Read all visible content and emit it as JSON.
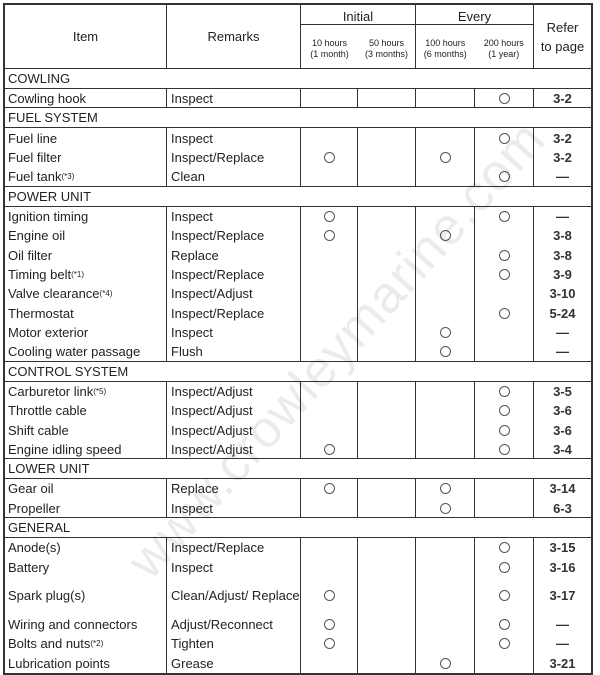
{
  "header": {
    "item": "Item",
    "remarks": "Remarks",
    "initial": "Initial",
    "every": "Every",
    "h10": "10 hours",
    "h10_sub": "(1 month)",
    "h50": "50 hours",
    "h50_sub": "(3 months)",
    "h100": "100 hours",
    "h100_sub": "(6 months)",
    "h200": "200 hours",
    "h200_sub": "(1 year)",
    "refer": "Refer to page"
  },
  "check_columns": [
    "10h",
    "50h",
    "100h",
    "200h"
  ],
  "sections": [
    {
      "title": "COWLING",
      "rows": [
        {
          "item": "Cowling hook",
          "note": "",
          "remarks": "Inspect",
          "checks": [
            "200h"
          ],
          "page": "3-2"
        }
      ]
    },
    {
      "title": "FUEL SYSTEM",
      "rows": [
        {
          "item": "Fuel line",
          "note": "",
          "remarks": "Inspect",
          "checks": [
            "200h"
          ],
          "page": "3-2"
        },
        {
          "item": "Fuel filter",
          "note": "",
          "remarks": "Inspect/Replace",
          "checks": [
            "10h",
            "100h"
          ],
          "page": "3-2"
        },
        {
          "item": "Fuel tank",
          "note": "(*3)",
          "remarks": "Clean",
          "checks": [
            "200h"
          ],
          "page": "—"
        }
      ]
    },
    {
      "title": "POWER UNIT",
      "rows": [
        {
          "item": "Ignition timing",
          "note": "",
          "remarks": "Inspect",
          "checks": [
            "10h",
            "200h"
          ],
          "page": "—"
        },
        {
          "item": "Engine oil",
          "note": "",
          "remarks": "Inspect/Replace",
          "checks": [
            "10h",
            "100h"
          ],
          "page": "3-8"
        },
        {
          "item": "Oil filter",
          "note": "",
          "remarks": "Replace",
          "checks": [
            "200h"
          ],
          "page": "3-8"
        },
        {
          "item": "Timing belt",
          "note": "(*1)",
          "remarks": "Inspect/Replace",
          "checks": [
            "200h"
          ],
          "page": "3-9"
        },
        {
          "item": "Valve clearance",
          "note": "(*4)",
          "remarks": "Inspect/Adjust",
          "checks": [],
          "page": "3-10"
        },
        {
          "item": "Thermostat",
          "note": "",
          "remarks": "Inspect/Replace",
          "checks": [
            "200h"
          ],
          "page": "5-24"
        },
        {
          "item": "Motor exterior",
          "note": "",
          "remarks": "Inspect",
          "checks": [
            "100h"
          ],
          "page": "—"
        },
        {
          "item": "Cooling water passage",
          "note": "",
          "remarks": "Flush",
          "checks": [
            "100h"
          ],
          "page": "—"
        }
      ]
    },
    {
      "title": "CONTROL SYSTEM",
      "rows": [
        {
          "item": "Carburetor link",
          "note": "(*5)",
          "remarks": "Inspect/Adjust",
          "checks": [
            "200h"
          ],
          "page": "3-5"
        },
        {
          "item": "Throttle cable",
          "note": "",
          "remarks": "Inspect/Adjust",
          "checks": [
            "200h"
          ],
          "page": "3-6"
        },
        {
          "item": "Shift cable",
          "note": "",
          "remarks": "Inspect/Adjust",
          "checks": [
            "200h"
          ],
          "page": "3-6"
        },
        {
          "item": "Engine idling speed",
          "note": "",
          "remarks": "Inspect/Adjust",
          "checks": [
            "10h",
            "200h"
          ],
          "page": "3-4"
        }
      ]
    },
    {
      "title": "LOWER UNIT",
      "rows": [
        {
          "item": "Gear oil",
          "note": "",
          "remarks": "Replace",
          "checks": [
            "10h",
            "100h"
          ],
          "page": "3-14"
        },
        {
          "item": "Propeller",
          "note": "",
          "remarks": "Inspect",
          "checks": [
            "100h"
          ],
          "page": "6-3"
        }
      ]
    },
    {
      "title": "GENERAL",
      "rows": [
        {
          "item": "Anode(s)",
          "note": "",
          "remarks": "Inspect/Replace",
          "checks": [
            "200h"
          ],
          "page": "3-15"
        },
        {
          "item": "Battery",
          "note": "",
          "remarks": "Inspect",
          "checks": [
            "200h"
          ],
          "page": "3-16"
        },
        {
          "item": "Spark plug(s)",
          "note": "",
          "remarks": "Clean/Adjust/ Replace",
          "checks": [
            "10h",
            "200h"
          ],
          "page": "3-17",
          "tall": true
        },
        {
          "item": "Wiring and connectors",
          "note": "",
          "remarks": "Adjust/Reconnect",
          "checks": [
            "10h",
            "200h"
          ],
          "page": "—"
        },
        {
          "item": "Bolts and nuts",
          "note": "(*2)",
          "remarks": "Tighten",
          "checks": [
            "10h",
            "200h"
          ],
          "page": "—"
        },
        {
          "item": "Lubrication points",
          "note": "",
          "remarks": "Grease",
          "checks": [
            "100h"
          ],
          "page": "3-21"
        }
      ]
    }
  ],
  "watermark": "www.crowleymarine.com"
}
